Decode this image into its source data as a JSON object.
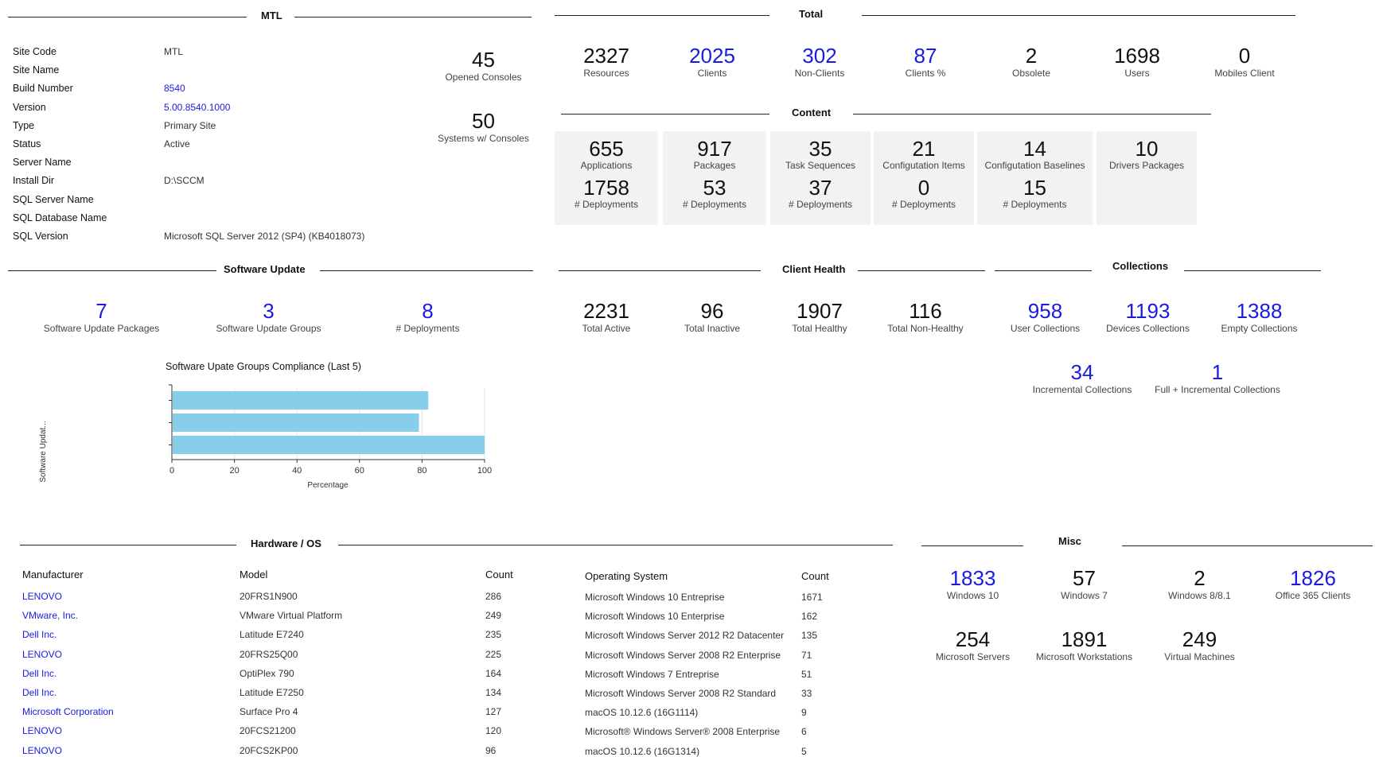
{
  "sections": {
    "mtl": "MTL",
    "total": "Total",
    "content": "Content",
    "software_update": "Software Update",
    "client_health": "Client Health",
    "collections": "Collections",
    "hardware_os": "Hardware / OS",
    "misc": "Misc"
  },
  "site_info": [
    {
      "key": "Site Code",
      "value": "MTL",
      "link": false
    },
    {
      "key": "Site Name",
      "value": "",
      "link": false
    },
    {
      "key": "Build Number",
      "value": "8540",
      "link": true
    },
    {
      "key": "Version",
      "value": "5.00.8540.1000",
      "link": true
    },
    {
      "key": "Type",
      "value": "Primary Site",
      "link": false
    },
    {
      "key": "Status",
      "value": "Active",
      "link": false
    },
    {
      "key": "Server Name",
      "value": "",
      "link": false
    },
    {
      "key": "Install Dir",
      "value": "D:\\SCCM",
      "link": false
    },
    {
      "key": "SQL Server Name",
      "value": "",
      "link": false
    },
    {
      "key": "SQL Database Name",
      "value": "",
      "link": false
    },
    {
      "key": "SQL Version",
      "value": "Microsoft SQL Server 2012 (SP4) (KB4018073)",
      "link": false
    }
  ],
  "consoles": [
    {
      "value": "45",
      "label": "Opened Consoles"
    },
    {
      "value": "50",
      "label": "Systems w/ Consoles"
    }
  ],
  "total": [
    {
      "value": "2327",
      "label": "Resources",
      "link": false
    },
    {
      "value": "2025",
      "label": "Clients",
      "link": true
    },
    {
      "value": "302",
      "label": "Non-Clients",
      "link": true
    },
    {
      "value": "87",
      "label": "Clients %",
      "link": true
    },
    {
      "value": "2",
      "label": "Obsolete",
      "link": false
    },
    {
      "value": "1698",
      "label": "Users",
      "link": false
    },
    {
      "value": "0",
      "label": "Mobiles Client",
      "link": false
    }
  ],
  "content": [
    {
      "value": "655",
      "label": "Applications",
      "dep_value": "1758",
      "dep_label": "# Deployments"
    },
    {
      "value": "917",
      "label": "Packages",
      "dep_value": "53",
      "dep_label": "# Deployments"
    },
    {
      "value": "35",
      "label": "Task Sequences",
      "dep_value": "37",
      "dep_label": "# Deployments"
    },
    {
      "value": "21",
      "label": "Configutation Items",
      "dep_value": "0",
      "dep_label": "# Deployments"
    },
    {
      "value": "14",
      "label": "Configutation Baselines",
      "dep_value": "15",
      "dep_label": "# Deployments"
    },
    {
      "value": "10",
      "label": "Drivers Packages",
      "dep_value": "",
      "dep_label": ""
    }
  ],
  "software_update": [
    {
      "value": "7",
      "label": "Software Update Packages"
    },
    {
      "value": "3",
      "label": "Software Update Groups"
    },
    {
      "value": "8",
      "label": "# Deployments"
    }
  ],
  "client_health": [
    {
      "value": "2231",
      "label": "Total Active"
    },
    {
      "value": "96",
      "label": "Total Inactive"
    },
    {
      "value": "1907",
      "label": "Total Healthy"
    },
    {
      "value": "116",
      "label": "Total Non-Healthy"
    }
  ],
  "collections": [
    {
      "value": "958",
      "label": "User Collections"
    },
    {
      "value": "1193",
      "label": "Devices Collections"
    },
    {
      "value": "1388",
      "label": "Empty Collections"
    },
    {
      "value": "34",
      "label": "Incremental Collections"
    },
    {
      "value": "1",
      "label": "Full + Incremental Collections"
    }
  ],
  "chart_data": {
    "type": "bar",
    "orientation": "horizontal",
    "title": "Software Upate Groups Compliance (Last 5)",
    "xlabel": "Percentage",
    "ylabel": "Software Updat...",
    "xlim": [
      0,
      100
    ],
    "xticks": [
      "0",
      "20",
      "40",
      "60",
      "80",
      "100"
    ],
    "values": [
      82,
      79,
      100
    ],
    "color": "#87ceeb",
    "grid": true
  },
  "hardware": {
    "headers": {
      "manufacturer": "Manufacturer",
      "model": "Model",
      "count": "Count"
    },
    "rows": [
      {
        "manufacturer": "LENOVO",
        "model": "20FRS1N900",
        "count": "286"
      },
      {
        "manufacturer": "VMware, Inc.",
        "model": "VMware Virtual Platform",
        "count": "249"
      },
      {
        "manufacturer": "Dell Inc.",
        "model": "Latitude E7240",
        "count": "235"
      },
      {
        "manufacturer": "LENOVO",
        "model": "20FRS25Q00",
        "count": "225"
      },
      {
        "manufacturer": "Dell Inc.",
        "model": "OptiPlex 790",
        "count": "164"
      },
      {
        "manufacturer": "Dell Inc.",
        "model": "Latitude E7250",
        "count": "134"
      },
      {
        "manufacturer": "Microsoft Corporation",
        "model": "Surface Pro 4",
        "count": "127"
      },
      {
        "manufacturer": "LENOVO",
        "model": "20FCS21200",
        "count": "120"
      },
      {
        "manufacturer": "LENOVO",
        "model": "20FCS2KP00",
        "count": "96"
      }
    ]
  },
  "os": {
    "headers": {
      "os": "Operating System",
      "count": "Count"
    },
    "rows": [
      {
        "os": "Microsoft Windows 10 Entreprise",
        "count": "1671"
      },
      {
        "os": "Microsoft Windows 10 Enterprise",
        "count": "162"
      },
      {
        "os": "Microsoft Windows Server 2012 R2 Datacenter",
        "count": "135"
      },
      {
        "os": "Microsoft Windows Server 2008 R2 Enterprise",
        "count": "71"
      },
      {
        "os": "Microsoft Windows 7 Entreprise",
        "count": "51"
      },
      {
        "os": "Microsoft Windows Server 2008 R2 Standard",
        "count": "33"
      },
      {
        "os": "macOS 10.12.6 (16G1114)",
        "count": "9"
      },
      {
        "os": "Microsoft® Windows Server® 2008 Enterprise",
        "count": "6"
      },
      {
        "os": "macOS 10.12.6 (16G1314)",
        "count": "5"
      }
    ]
  },
  "misc": [
    {
      "value": "1833",
      "label": "Windows 10",
      "link": true
    },
    {
      "value": "57",
      "label": "Windows 7",
      "link": false
    },
    {
      "value": "2",
      "label": "Windows 8/8.1",
      "link": false
    },
    {
      "value": "1826",
      "label": "Office 365 Clients",
      "link": true
    },
    {
      "value": "254",
      "label": "Microsoft Servers",
      "link": false
    },
    {
      "value": "1891",
      "label": "Microsoft Workstations",
      "link": false
    },
    {
      "value": "249",
      "label": "Virtual Machines",
      "link": false
    }
  ]
}
